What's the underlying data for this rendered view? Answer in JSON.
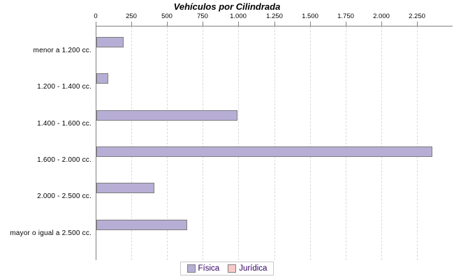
{
  "title": "Vehículos por Cilindrada",
  "legend": {
    "items": [
      {
        "label": "Física",
        "color": "#b7aed5"
      },
      {
        "label": "Jurídica",
        "color": "#f7caca"
      }
    ]
  },
  "colors": {
    "bar_fill": "#b7aed5",
    "bar_border": "#7d7d7d",
    "axis": "#808080",
    "gridline": "#d9d9d9",
    "legend_text": "#330066",
    "legend_box_border": "#c8c8c8",
    "background": "#ffffff"
  },
  "chart_data": {
    "type": "bar",
    "orientation": "horizontal",
    "title": "Vehículos por Cilindrada",
    "categories": [
      "menor a 1.200 cc.",
      "1.200 - 1.400 cc.",
      "1.400 - 1.600 cc.",
      "1.600 - 2.000 cc.",
      "2.000 - 2.500 cc.",
      "mayor o igual a 2.500 cc."
    ],
    "series": [
      {
        "name": "Física",
        "color": "#b7aed5",
        "values": [
          190,
          85,
          990,
          2355,
          405,
          635
        ]
      },
      {
        "name": "Jurídica",
        "color": "#f7caca",
        "values": [
          0,
          0,
          0,
          0,
          0,
          0
        ]
      }
    ],
    "xlabel": "",
    "ylabel": "",
    "xlim": [
      0,
      2500
    ],
    "tick_step": 250,
    "tick_labels": [
      "0",
      "250",
      "500",
      "750",
      "1.000",
      "1.250",
      "1.500",
      "1.750",
      "2.000",
      "2.250"
    ],
    "grid": "vertical-dashed",
    "legend_position": "bottom"
  }
}
